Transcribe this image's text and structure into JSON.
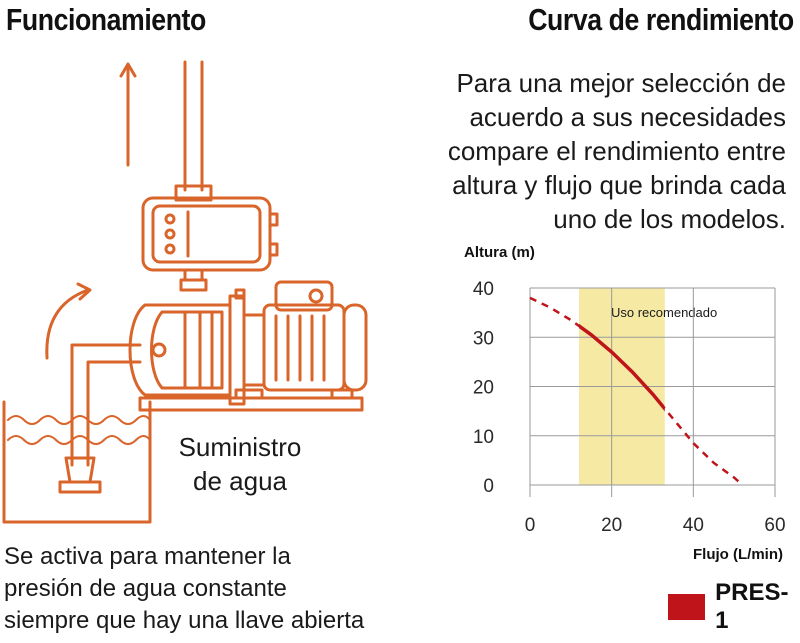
{
  "left": {
    "title": "Funcionamiento",
    "supply_label_lines": [
      "Suministro",
      "de agua"
    ],
    "description_lines": [
      "Se activa para mantener la",
      "presión de agua constante",
      "siempre que hay una llave abierta"
    ]
  },
  "right": {
    "title": "Curva de rendimiento",
    "intro_lines": [
      "Para una mejor selección de",
      "acuerdo a sus necesidades",
      "compare el rendimiento entre",
      "altura y flujo que brinda cada",
      "uno de los modelos."
    ]
  },
  "colors": {
    "illustration": "#d9652b",
    "curve": "#c0141b",
    "recommended_band": "#f5e9a3",
    "water": "#d9652b"
  },
  "chart_data": {
    "type": "line",
    "title": "",
    "xlabel": "Flujo (L/min)",
    "ylabel": "Altura (m)",
    "xlim": [
      0,
      60
    ],
    "ylim": [
      0,
      40
    ],
    "x_ticks": [
      0,
      20,
      40,
      60
    ],
    "y_ticks": [
      0,
      10,
      20,
      30,
      40
    ],
    "grid": true,
    "series": [
      {
        "name": "PRES-1",
        "color": "#c0141b",
        "x": [
          0,
          5,
          10,
          15,
          20,
          25,
          30,
          35,
          40,
          45,
          50,
          52
        ],
        "y": [
          38,
          36,
          33.5,
          30.5,
          27,
          23,
          18.5,
          13.5,
          8.5,
          4.5,
          1.5,
          0
        ]
      }
    ],
    "recommended_range": {
      "label": "Uso recomendado",
      "x": [
        12,
        33
      ]
    },
    "legend": {
      "position": "bottom-right",
      "entries": [
        "PRES-1"
      ]
    }
  }
}
